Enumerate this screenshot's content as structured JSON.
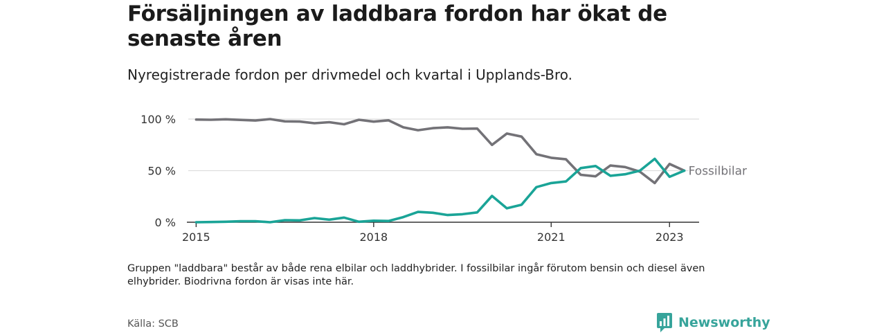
{
  "header": {
    "title": "Försäljningen av laddbara fordon har ökat de senaste åren",
    "subtitle": "Nyregistrerade fordon per drivmedel och kvartal i Upplands-Bro."
  },
  "footer": {
    "note": "Gruppen \"laddbara\" består av både rena elbilar och laddhybrider. I fossilbilar ingår förutom bensin och diesel även elhybrider. Biodrivna fordon är visas inte här.",
    "source": "Källa: SCB",
    "brand": "Newsworthy"
  },
  "colors": {
    "fossil": "#737277",
    "laddbara": "#1aa497",
    "grid": "#dddddd",
    "axis": "#333333",
    "brand": "#37a49b"
  },
  "chart_data": {
    "type": "line",
    "title": "Försäljningen av laddbara fordon har ökat de senaste åren",
    "xlabel": "",
    "ylabel": "",
    "xlim": [
      2014.75,
      2023.5
    ],
    "ylim": [
      0,
      100
    ],
    "x_ticks": [
      2015,
      2018,
      2021,
      2023
    ],
    "x_tick_labels": [
      "2015",
      "2018",
      "2021",
      "2023"
    ],
    "y_ticks": [
      0,
      50,
      100
    ],
    "y_tick_labels": [
      "0 %",
      "50 %",
      "100 %"
    ],
    "grid": true,
    "x": [
      2015.0,
      2015.25,
      2015.5,
      2015.75,
      2016.0,
      2016.25,
      2016.5,
      2016.75,
      2017.0,
      2017.25,
      2017.5,
      2017.75,
      2018.0,
      2018.25,
      2018.5,
      2018.75,
      2019.0,
      2019.25,
      2019.5,
      2019.75,
      2020.0,
      2020.25,
      2020.5,
      2020.75,
      2021.0,
      2021.25,
      2021.5,
      2021.75,
      2022.0,
      2022.25,
      2022.5,
      2022.75,
      2023.0,
      2023.25
    ],
    "series": [
      {
        "name": "Fossilbilar",
        "label": "Fossilbilar",
        "values": [
          99.5,
          99.3,
          99.8,
          99.2,
          98.6,
          100.0,
          97.8,
          97.6,
          96.0,
          97.0,
          95.0,
          99.3,
          97.5,
          98.8,
          92.0,
          89.2,
          91.2,
          92.0,
          90.6,
          90.8,
          75.0,
          86.0,
          83.0,
          66.0,
          62.5,
          61.0,
          46.0,
          44.5,
          55.0,
          53.5,
          49.0,
          38.0,
          56.5,
          50.0
        ]
      },
      {
        "name": "Laddbara",
        "label": "",
        "values": [
          0.0,
          0.2,
          0.5,
          1.0,
          1.0,
          0.0,
          2.0,
          1.8,
          4.0,
          2.5,
          4.5,
          0.5,
          1.5,
          1.2,
          5.0,
          10.0,
          9.2,
          7.0,
          7.8,
          9.5,
          25.5,
          13.5,
          17.0,
          34.0,
          38.0,
          39.5,
          52.5,
          54.5,
          45.0,
          46.5,
          50.0,
          61.5,
          44.0,
          50.0
        ]
      }
    ]
  }
}
